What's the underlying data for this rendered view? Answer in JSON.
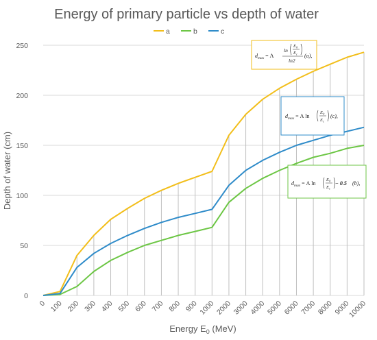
{
  "chart_data": {
    "type": "line",
    "title": "Energy of primary particle vs depth of water",
    "xlabel": "Energy E",
    "xlabel_sub": "0",
    "xlabel_unit": " (MeV)",
    "ylabel": "Depth of water (cm)",
    "ylim": [
      0,
      250
    ],
    "yticks": [
      0,
      50,
      100,
      150,
      200,
      250
    ],
    "categories": [
      "0",
      "100",
      "200",
      "300",
      "400",
      "500",
      "600",
      "700",
      "800",
      "900",
      "1000",
      "2000",
      "3000",
      "4000",
      "5000",
      "6000",
      "7000",
      "8000",
      "9000",
      "10000"
    ],
    "grid": "vertical lines at each category",
    "legend": "top",
    "series": [
      {
        "name": "a",
        "color": "#F2BE1A",
        "values": [
          0,
          4,
          40,
          60,
          76,
          87,
          97,
          105,
          112,
          118,
          124,
          160,
          181,
          196,
          207,
          216,
          224,
          231,
          238,
          243
        ]
      },
      {
        "name": "b",
        "color": "#6CC644",
        "values": [
          0,
          1,
          9,
          24,
          35,
          43,
          50,
          55,
          60,
          64,
          68,
          93,
          107,
          117,
          125,
          132,
          138,
          142,
          147,
          150
        ]
      },
      {
        "name": "c",
        "color": "#2E8BC9",
        "values": [
          0,
          2,
          28,
          42,
          52,
          60,
          67,
          73,
          78,
          82,
          86,
          110,
          125,
          135,
          143,
          150,
          155,
          160,
          164,
          168
        ]
      }
    ],
    "annotations": [
      {
        "label": "(a),",
        "name": "formula-a",
        "border": "#F2BE1A",
        "lhs": "d",
        "sub": "max",
        "eq": " = Λ ",
        "num": "ln",
        "num_e": "E",
        "num_0": "0",
        "num_c": "E",
        "num_csub": "c",
        "den": "ln2"
      },
      {
        "label": "(c),",
        "name": "formula-c",
        "border": "#2E8BC9",
        "lhs": "d",
        "sub": "max",
        "eq": " = Λ ln",
        "e": "E",
        "e0": "0",
        "ec": "E",
        "ecsub": "c"
      },
      {
        "label": "(b),",
        "name": "formula-b",
        "border": "#6CC644",
        "lhs": "d",
        "sub": "max",
        "eq": " = Λ ln",
        "e": "E",
        "e0": "0",
        "ec": "E",
        "ecsub": "c",
        "minus": " − 0.5"
      }
    ]
  }
}
